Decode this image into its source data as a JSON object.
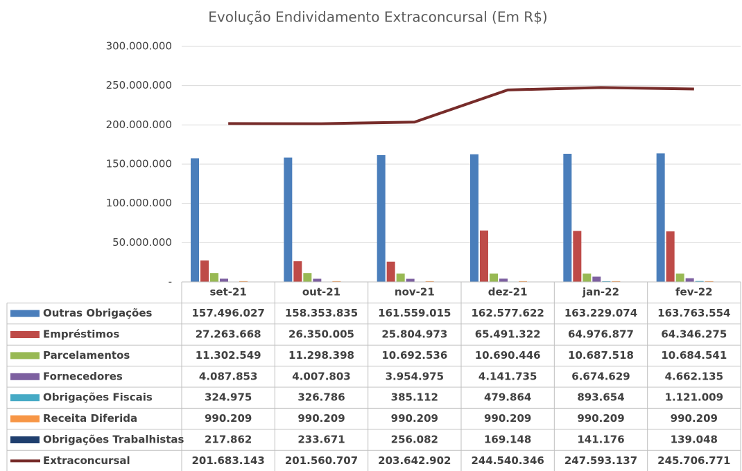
{
  "chart_data": {
    "type": "bar",
    "title": "Evolução Endividamento Extraconcursal (Em R$)",
    "categories": [
      "set-21",
      "out-21",
      "nov-21",
      "dez-21",
      "jan-22",
      "fev-22"
    ],
    "ylim": [
      0,
      300000000
    ],
    "yticks": [
      {
        "value": 0,
        "label": "-"
      },
      {
        "value": 50000000,
        "label": "50.000.000"
      },
      {
        "value": 100000000,
        "label": "100.000.000"
      },
      {
        "value": 150000000,
        "label": "150.000.000"
      },
      {
        "value": 200000000,
        "label": "200.000.000"
      },
      {
        "value": 250000000,
        "label": "250.000.000"
      },
      {
        "value": 300000000,
        "label": "300.000.000"
      }
    ],
    "grid": true,
    "series": [
      {
        "name": "Outras Obrigações",
        "color": "#4a7ebb",
        "values": [
          157496027,
          158353835,
          161559015,
          162577622,
          163229074,
          163763554
        ],
        "value_labels": [
          "157.496.027",
          "158.353.835",
          "161.559.015",
          "162.577.622",
          "163.229.074",
          "163.763.554"
        ]
      },
      {
        "name": "Empréstimos",
        "color": "#be4b48",
        "values": [
          27263668,
          26350005,
          25804973,
          65491322,
          64976877,
          64346275
        ],
        "value_labels": [
          "27.263.668",
          "26.350.005",
          "25.804.973",
          "65.491.322",
          "64.976.877",
          "64.346.275"
        ]
      },
      {
        "name": "Parcelamentos",
        "color": "#98b954",
        "values": [
          11302549,
          11298398,
          10692536,
          10690446,
          10687518,
          10684541
        ],
        "value_labels": [
          "11.302.549",
          "11.298.398",
          "10.692.536",
          "10.690.446",
          "10.687.518",
          "10.684.541"
        ]
      },
      {
        "name": "Fornecedores",
        "color": "#7d60a0",
        "values": [
          4087853,
          4007803,
          3954975,
          4141735,
          6674629,
          4662135
        ],
        "value_labels": [
          "4.087.853",
          "4.007.803",
          "3.954.975",
          "4.141.735",
          "6.674.629",
          "4.662.135"
        ]
      },
      {
        "name": "Obrigações Fiscais",
        "color": "#46aac5",
        "values": [
          324975,
          326786,
          385112,
          479864,
          893654,
          1121009
        ],
        "value_labels": [
          "324.975",
          "326.786",
          "385.112",
          "479.864",
          "893.654",
          "1.121.009"
        ]
      },
      {
        "name": "Receita Diferida",
        "color": "#f79646",
        "values": [
          990209,
          990209,
          990209,
          990209,
          990209,
          990209
        ],
        "value_labels": [
          "990.209",
          "990.209",
          "990.209",
          "990.209",
          "990.209",
          "990.209"
        ]
      },
      {
        "name": "Obrigações Trabalhistas",
        "color": "#1f3f6e",
        "values": [
          217862,
          233671,
          256082,
          169148,
          141176,
          139048
        ],
        "value_labels": [
          "217.862",
          "233.671",
          "256.082",
          "169.148",
          "141.176",
          "139.048"
        ]
      },
      {
        "name": "Extraconcursal",
        "type": "line",
        "color": "#772c2a",
        "values": [
          201683143,
          201560707,
          203642902,
          244540346,
          247593137,
          245706771
        ],
        "value_labels": [
          "201.683.143",
          "201.560.707",
          "203.642.902",
          "244.540.346",
          "247.593.137",
          "245.706.771"
        ]
      }
    ]
  }
}
